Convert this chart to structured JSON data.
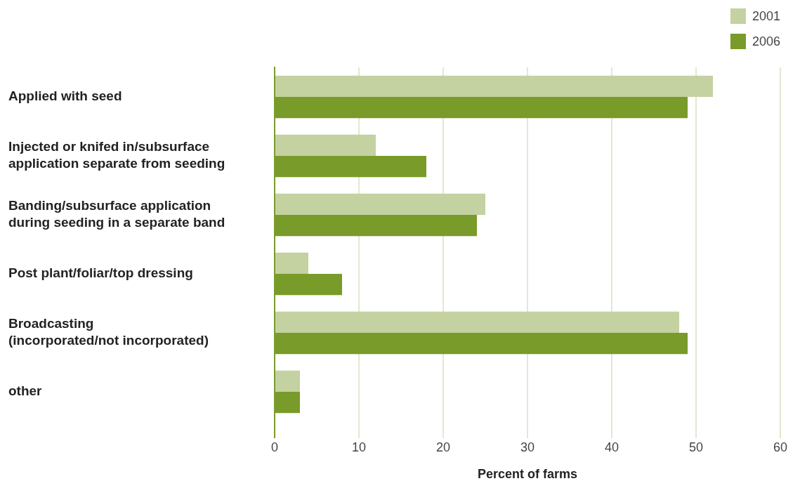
{
  "chart_data": {
    "type": "bar",
    "orientation": "horizontal",
    "categories": [
      "Applied with seed",
      "Injected or knifed in/subsurface application separate from seeding",
      "Banding/subsurface application during seeding in a separate band",
      "Post plant/foliar/top dressing",
      "Broadcasting (incorporated/not incorporated)",
      "other"
    ],
    "series": [
      {
        "name": "2001",
        "color": "#c4d1a0",
        "values": [
          52,
          12,
          25,
          4,
          48,
          3
        ]
      },
      {
        "name": "2006",
        "color": "#789b29",
        "values": [
          49,
          18,
          24,
          8,
          49,
          3
        ]
      }
    ],
    "xlabel": "Percent of farms",
    "xlim": [
      0,
      60
    ],
    "xticks": [
      0,
      10,
      20,
      30,
      40,
      50,
      60
    ],
    "grid": "x",
    "legend": "top right"
  }
}
